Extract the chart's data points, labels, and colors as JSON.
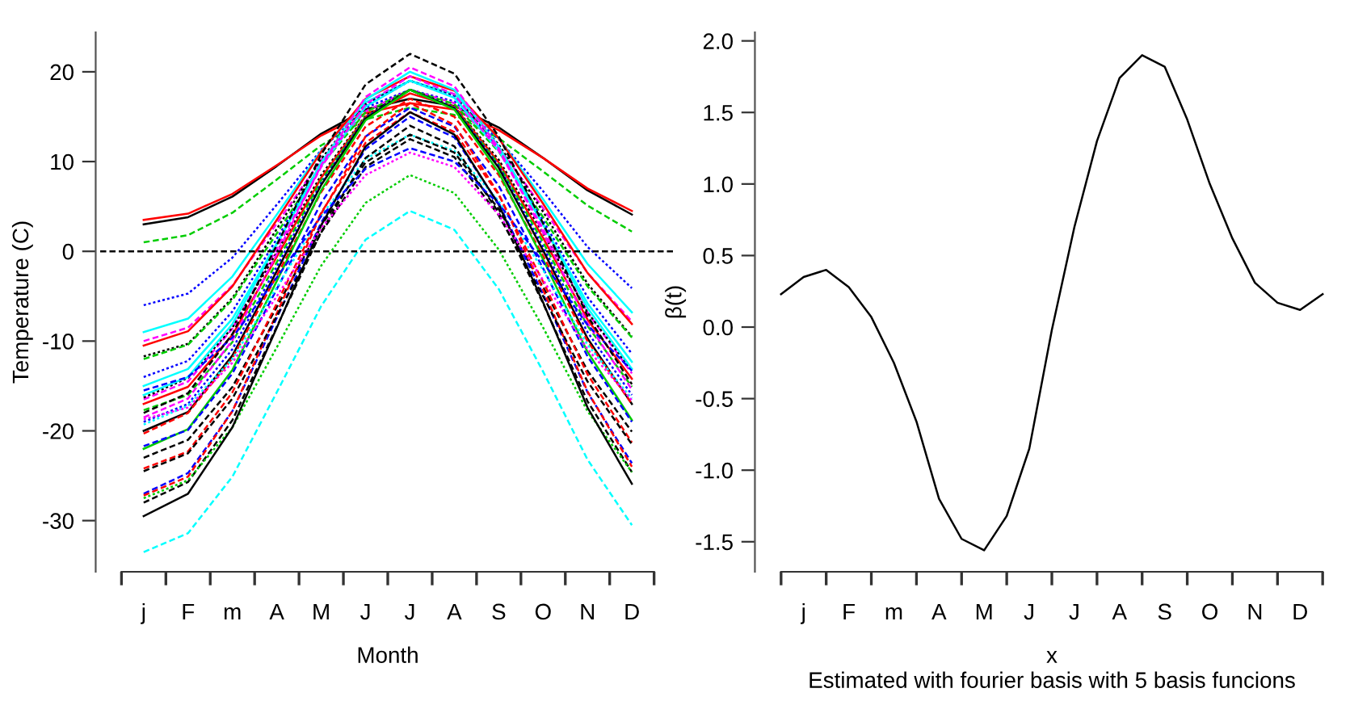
{
  "chart_data": [
    {
      "type": "line",
      "xlabel": "Month",
      "ylabel": "Temperature (C)",
      "categories": [
        "j",
        "F",
        "m",
        "A",
        "M",
        "J",
        "J",
        "A",
        "S",
        "O",
        "N",
        "D"
      ],
      "ylim": [
        -35.7,
        24.4
      ],
      "yticks": [
        -30,
        -20,
        -10,
        0,
        10,
        20
      ],
      "grid": false,
      "legend": false,
      "marker": "none",
      "ref_lines": [
        {
          "axis": "y",
          "value": 0,
          "color": "#000000",
          "line_style": "dashed"
        }
      ],
      "series": [
        {
          "color": "#000000",
          "line_style": "solid",
          "values": [
            3.0,
            3.8,
            6.1,
            9.5,
            13.1,
            15.8,
            17.0,
            16.2,
            13.8,
            10.4,
            6.8,
            4.1
          ]
        },
        {
          "color": "#ff0000",
          "line_style": "solid",
          "values": [
            3.5,
            4.2,
            6.4,
            9.6,
            12.9,
            15.4,
            16.5,
            15.8,
            13.5,
            10.4,
            7.0,
            4.5
          ]
        },
        {
          "color": "#00cd00",
          "line_style": "dashed",
          "values": [
            1.0,
            1.8,
            4.3,
            8.0,
            11.8,
            14.7,
            16.0,
            15.2,
            12.6,
            8.9,
            5.1,
            2.2
          ]
        },
        {
          "color": "#0000ff",
          "line_style": "dotted",
          "values": [
            -6.0,
            -4.7,
            -0.7,
            5.2,
            11.3,
            16.0,
            18.0,
            16.7,
            12.5,
            6.7,
            0.5,
            -4.1
          ]
        },
        {
          "color": "#00ffff",
          "line_style": "solid",
          "values": [
            -9.0,
            -7.5,
            -2.8,
            4.1,
            11.2,
            16.6,
            19.0,
            17.5,
            12.6,
            5.8,
            -1.4,
            -6.8
          ]
        },
        {
          "color": "#ff00ff",
          "line_style": "dashed",
          "values": [
            -10.0,
            -8.5,
            -3.8,
            3.1,
            10.2,
            15.6,
            18.0,
            16.5,
            11.6,
            4.8,
            -2.4,
            -7.8
          ]
        },
        {
          "color": "#000000",
          "line_style": "dotted",
          "values": [
            -11.7,
            -10.3,
            -5.2,
            2.5,
            10.3,
            16.4,
            19.0,
            17.3,
            11.9,
            4.4,
            -3.6,
            -9.5
          ]
        },
        {
          "color": "#ff0000",
          "line_style": "solid",
          "values": [
            -10.5,
            -8.9,
            -3.9,
            3.5,
            11.1,
            17.0,
            19.5,
            17.9,
            12.6,
            5.3,
            -2.4,
            -8.1
          ]
        },
        {
          "color": "#00cd00",
          "line_style": "dashed",
          "values": [
            -12.0,
            -10.4,
            -5.4,
            2.0,
            9.6,
            15.5,
            18.0,
            16.4,
            11.1,
            3.8,
            -3.9,
            -9.6
          ]
        },
        {
          "color": "#0000ff",
          "line_style": "dotted",
          "values": [
            -14.0,
            -12.2,
            -6.7,
            1.4,
            9.8,
            16.2,
            19.0,
            17.2,
            11.4,
            3.4,
            -5.1,
            -11.4
          ]
        },
        {
          "color": "#00ffff",
          "line_style": "solid",
          "values": [
            -15.0,
            -13.1,
            -7.5,
            0.9,
            9.5,
            16.1,
            19.0,
            17.1,
            11.2,
            3.0,
            -5.8,
            -12.3
          ]
        },
        {
          "color": "#ff00ff",
          "line_style": "dashed",
          "values": [
            -16.5,
            -14.5,
            -8.6,
            0.3,
            9.4,
            16.4,
            19.5,
            17.5,
            11.2,
            2.5,
            -6.8,
            -13.6
          ]
        },
        {
          "color": "#000000",
          "line_style": "dotted",
          "values": [
            -16.3,
            -14.1,
            -8.5,
            -0.1,
            8.5,
            15.1,
            18.0,
            16.1,
            10.2,
            2.0,
            -6.8,
            -13.3
          ]
        },
        {
          "color": "#ff0000",
          "line_style": "solid",
          "values": [
            -17.0,
            -15.1,
            -9.3,
            -0.6,
            8.2,
            15.0,
            17.6,
            16.1,
            9.9,
            1.5,
            -7.6,
            -14.2
          ]
        },
        {
          "color": "#00cd00",
          "line_style": "dashed",
          "values": [
            -17.7,
            -16.0,
            -10.1,
            -1.2,
            7.9,
            14.9,
            18.0,
            16.0,
            9.7,
            1.0,
            -8.3,
            -15.1
          ]
        },
        {
          "color": "#0000ff",
          "line_style": "dotted",
          "values": [
            -19.0,
            -17.0,
            -10.9,
            -1.7,
            7.6,
            14.9,
            18.0,
            16.0,
            9.5,
            0.5,
            -9.0,
            -16.0
          ]
        },
        {
          "color": "#00ffff",
          "line_style": "solid",
          "values": [
            -16.0,
            -14.0,
            -8.1,
            0.8,
            9.9,
            16.9,
            20.0,
            18.0,
            11.7,
            3.0,
            -6.3,
            -13.1
          ]
        },
        {
          "color": "#ff00ff",
          "line_style": "dashed",
          "values": [
            -18.5,
            -16.4,
            -9.9,
            -0.3,
            9.6,
            17.2,
            20.5,
            18.4,
            11.5,
            2.1,
            -8.0,
            -15.4
          ]
        },
        {
          "color": "#000000",
          "line_style": "solid",
          "values": [
            -20.0,
            -17.9,
            -11.6,
            -2.2,
            7.4,
            14.8,
            18.0,
            15.9,
            9.3,
            0.1,
            -9.7,
            -17.0
          ]
        },
        {
          "color": "#ff0000",
          "line_style": "dashed",
          "values": [
            -20.3,
            -18.0,
            -11.9,
            -2.7,
            6.6,
            13.9,
            17.0,
            15.0,
            8.5,
            -0.5,
            -10.0,
            -17.0
          ]
        },
        {
          "color": "#00cd00",
          "line_style": "solid",
          "values": [
            -22.0,
            -19.8,
            -13.2,
            -3.3,
            6.8,
            14.6,
            18.0,
            15.8,
            8.8,
            -0.9,
            -11.2,
            -18.8
          ]
        },
        {
          "color": "#0000ff",
          "line_style": "dashed",
          "values": [
            -21.7,
            -19.9,
            -13.6,
            -4.2,
            5.4,
            12.8,
            16.0,
            13.9,
            7.3,
            -1.9,
            -11.7,
            -19.0
          ]
        },
        {
          "color": "#00ffff",
          "line_style": "dotted",
          "values": [
            -19.3,
            -17.2,
            -12.0,
            -4.0,
            4.0,
            10.3,
            13.0,
            11.2,
            5.6,
            -2.1,
            -10.4,
            -16.4
          ]
        },
        {
          "color": "#000000",
          "line_style": "dashed",
          "values": [
            -23.0,
            -21.0,
            -15.1,
            -6.2,
            2.9,
            9.9,
            13.0,
            11.0,
            4.7,
            -4.0,
            -13.3,
            -20.1
          ]
        },
        {
          "color": "#ff0000",
          "line_style": "dashed",
          "values": [
            -24.2,
            -22.3,
            -15.7,
            -5.8,
            4.3,
            12.1,
            15.5,
            13.3,
            6.3,
            -3.4,
            -13.7,
            -21.3
          ]
        },
        {
          "color": "#0000ff",
          "line_style": "dashed",
          "values": [
            -27.0,
            -24.7,
            -17.8,
            -7.4,
            3.2,
            11.4,
            15.0,
            12.7,
            5.3,
            -4.8,
            -15.7,
            -23.6
          ]
        },
        {
          "color": "#000000",
          "line_style": "dashed",
          "values": [
            -28.0,
            -25.7,
            -18.8,
            -8.4,
            2.2,
            10.4,
            14.0,
            11.7,
            4.3,
            -5.8,
            -16.7,
            -24.6
          ]
        },
        {
          "color": "#ff0000",
          "line_style": "dashed",
          "values": [
            -27.2,
            -25.1,
            -17.8,
            -6.9,
            4.2,
            12.8,
            16.5,
            14.1,
            6.4,
            -4.3,
            -15.6,
            -24.0
          ]
        },
        {
          "color": "#000000",
          "line_style": "dashed",
          "values": [
            -24.5,
            -22.5,
            -16.4,
            -7.2,
            2.1,
            9.4,
            12.5,
            10.5,
            4.0,
            -5.0,
            -14.5,
            -21.5
          ]
        },
        {
          "color": "#00cd00",
          "line_style": "dotted",
          "values": [
            -27.5,
            -25.5,
            -19.6,
            -10.7,
            -1.6,
            5.4,
            8.5,
            6.5,
            0.2,
            -8.5,
            -17.8,
            -24.6
          ]
        },
        {
          "color": "#00ffff",
          "line_style": "dashed",
          "values": [
            -33.5,
            -31.4,
            -25.1,
            -15.7,
            -6.1,
            1.3,
            4.5,
            2.4,
            -4.2,
            -13.4,
            -23.2,
            -30.5
          ]
        },
        {
          "color": "#000000",
          "line_style": "solid",
          "values": [
            -29.5,
            -27.0,
            -19.6,
            -8.5,
            2.9,
            11.7,
            15.5,
            13.0,
            5.2,
            -5.7,
            -17.4,
            -25.9
          ]
        },
        {
          "color": "#0000ff",
          "line_style": "dashed",
          "values": [
            -15.5,
            -14.0,
            -9.6,
            -2.9,
            3.9,
            9.2,
            11.5,
            10.0,
            5.3,
            -1.2,
            -8.2,
            -13.3
          ]
        },
        {
          "color": "#ff00ff",
          "line_style": "dotted",
          "values": [
            -18.7,
            -17.4,
            -12.4,
            -5.0,
            2.6,
            8.5,
            11.0,
            9.4,
            4.1,
            -3.2,
            -10.9,
            -16.6
          ]
        },
        {
          "color": "#000000",
          "line_style": "dashed",
          "values": [
            -18.0,
            -15.8,
            -9.2,
            0.7,
            10.8,
            18.6,
            22.0,
            19.8,
            12.8,
            3.1,
            -7.2,
            -14.8
          ]
        }
      ]
    },
    {
      "type": "line",
      "xlabel": "x",
      "ylabel": "β(t)",
      "annotations": [
        "Estimated with fourier basis with 5 basis funcions"
      ],
      "categories": [
        null,
        "j",
        null,
        "F",
        null,
        "m",
        null,
        "A",
        null,
        "M",
        null,
        "J",
        null,
        "J",
        null,
        "A",
        null,
        "S",
        null,
        "O",
        null,
        "N",
        null,
        "D",
        null
      ],
      "ylim": [
        -1.71,
        2.06
      ],
      "yticks": [
        -1.5,
        {
          "value": -1,
          "label": "-1.0"
        },
        -0.5,
        {
          "value": 0,
          "label": "0.0"
        },
        0.5,
        {
          "value": 1,
          "label": "1.0"
        },
        1.5,
        {
          "value": 2,
          "label": "2.0"
        }
      ],
      "grid": false,
      "legend": false,
      "marker": "none",
      "series": [
        {
          "color": "#000000",
          "line_style": "solid",
          "values": [
            0.23,
            0.35,
            0.4,
            0.28,
            0.07,
            -0.25,
            -0.66,
            -1.2,
            -1.48,
            -1.56,
            -1.32,
            -0.85,
            -0.02,
            0.7,
            1.3,
            1.74,
            1.9,
            1.82,
            1.45,
            1.0,
            0.62,
            0.31,
            0.17,
            0.12,
            0.23
          ]
        }
      ]
    }
  ]
}
